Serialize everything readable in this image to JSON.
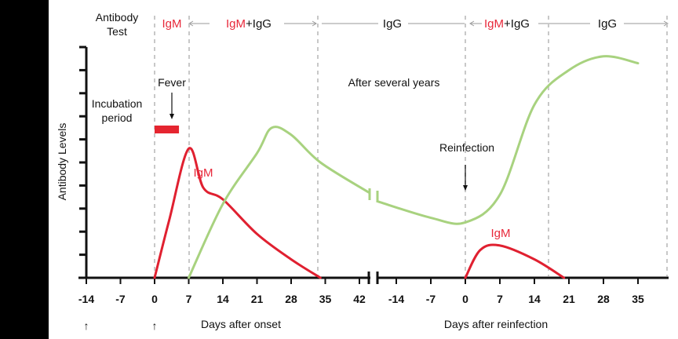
{
  "chart_data": {
    "type": "line",
    "ylabel": "Antibody Levels",
    "xlabel_primary": "Days after onset",
    "xlabel_secondary": "Days after reinfection",
    "ylim": [
      0,
      10
    ],
    "x_ticks_primary": [
      "-14",
      "-7",
      "0",
      "7",
      "14",
      "21",
      "28",
      "35",
      "42"
    ],
    "x_ticks_secondary": [
      "-14",
      "-7",
      "0",
      "7",
      "14",
      "21",
      "28",
      "35"
    ],
    "header": {
      "test_label_line1": "Antibody",
      "test_label_line2": "Test",
      "phase1": "IgM",
      "phase2_igm": "IgM",
      "phase2_rest": "+IgG",
      "phase3": "IgG",
      "phase4_igm": "IgM",
      "phase4_rest": "+IgG",
      "phase5": "IgG"
    },
    "annotations": {
      "incubation_line1": "Incubation",
      "incubation_line2": "period",
      "fever": "Fever",
      "after_years": "After several years",
      "reinfection": "Reinfection",
      "igm_label_1": "IgM",
      "igm_label_2": "IgM"
    },
    "arrows_below_axis": [
      "↑",
      "↑"
    ],
    "fever_period_days": [
      0,
      5
    ],
    "series": [
      {
        "name": "IgM (primary)",
        "color": "#e02030",
        "points": [
          [
            0,
            0
          ],
          [
            3,
            2.5
          ],
          [
            7,
            5.6
          ],
          [
            10,
            3.9
          ],
          [
            14,
            3.4
          ],
          [
            21,
            1.9
          ],
          [
            28,
            0.8
          ],
          [
            34,
            0
          ]
        ]
      },
      {
        "name": "IgG (primary)",
        "color": "#a8d27f",
        "points": [
          [
            7,
            0
          ],
          [
            14,
            3.2
          ],
          [
            21,
            5.4
          ],
          [
            24,
            6.5
          ],
          [
            28,
            6.2
          ],
          [
            34,
            5.0
          ],
          [
            42,
            3.7
          ]
        ]
      },
      {
        "name": "IgG (reinfection)",
        "color": "#a8d27f",
        "points": [
          [
            -14,
            3.3
          ],
          [
            -7,
            2.6
          ],
          [
            0,
            2.4
          ],
          [
            7,
            3.6
          ],
          [
            14,
            7.5
          ],
          [
            21,
            9.0
          ],
          [
            28,
            9.6
          ],
          [
            35,
            9.3
          ]
        ]
      },
      {
        "name": "IgM (reinfection)",
        "color": "#e02030",
        "points": [
          [
            0,
            0
          ],
          [
            3,
            1.2
          ],
          [
            7,
            1.4
          ],
          [
            14,
            0.8
          ],
          [
            20,
            0
          ]
        ]
      }
    ]
  }
}
